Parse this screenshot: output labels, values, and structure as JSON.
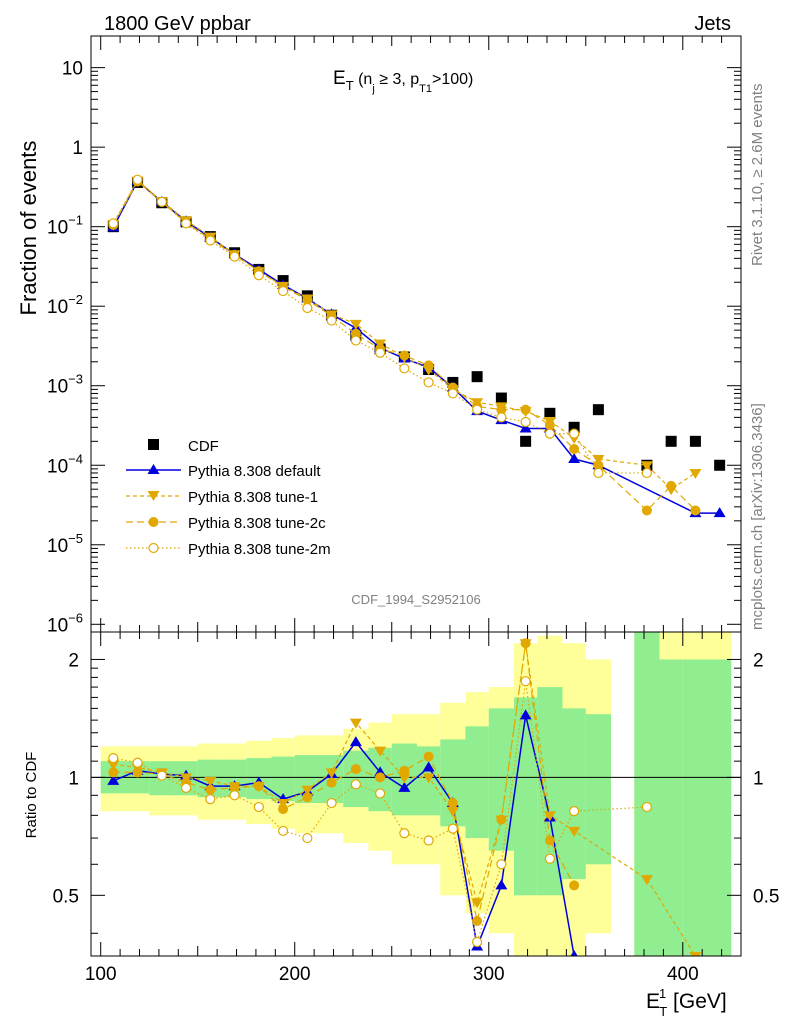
{
  "header": {
    "left": "1800 GeV ppbar",
    "right": "Jets",
    "side_top": "Rivet 3.1.10, ≥ 2.6M events",
    "side_bottom": "mcplots.cern.ch [arXiv:1306.3436]",
    "watermark": "CDF_1994_S2952106"
  },
  "colors": {
    "cdf": "#000000",
    "default": "#0000dd",
    "tunes": "#e0a800",
    "band_inner": "#90ee90",
    "band_outer": "#ffff99"
  },
  "chart_data": [
    {
      "type": "scatter",
      "title": "E_T (n_j ≥ 3, p_T1 >100)",
      "title_main": "E",
      "title_sub": "T",
      "title_rest_1": " (n",
      "title_sub2": "j",
      "title_rest_2": " ≥ 3, p",
      "title_sub3": "T1",
      "title_rest_3": ">100)",
      "ylabel": "Fraction of events",
      "yscale": "log",
      "ylim": [
        8e-07,
        25
      ],
      "xlim": [
        95,
        430
      ],
      "y_ticks": [
        {
          "v": 10,
          "m": "10",
          "e": ""
        },
        {
          "v": 1,
          "m": "1",
          "e": ""
        },
        {
          "v": 0.1,
          "m": "10",
          "e": "−1"
        },
        {
          "v": 0.01,
          "m": "10",
          "e": "−2"
        },
        {
          "v": 0.001,
          "m": "10",
          "e": "−3"
        },
        {
          "v": 0.0001,
          "m": "10",
          "e": "−4"
        },
        {
          "v": 1e-05,
          "m": "10",
          "e": "−5"
        },
        {
          "v": 1e-06,
          "m": "10",
          "e": "−6"
        }
      ],
      "legend": {
        "position": "bottom-left",
        "entries": [
          "CDF",
          "Pythia 8.308 default",
          "Pythia 8.308 tune-1",
          "Pythia 8.308 tune-2c",
          "Pythia 8.308 tune-2m"
        ]
      },
      "series": [
        {
          "name": "CDF",
          "style": "square",
          "x": [
            106.5,
            119,
            131.5,
            144,
            156.5,
            169,
            181.5,
            194,
            206.5,
            219,
            231.5,
            244,
            256.5,
            269,
            281.5,
            294,
            306.5,
            319,
            331.5,
            344,
            356.5,
            381.5,
            394,
            406.5,
            419
          ],
          "y": [
            0.1,
            0.36,
            0.2,
            0.115,
            0.075,
            0.047,
            0.029,
            0.021,
            0.0135,
            0.0077,
            0.0043,
            0.0029,
            0.0023,
            0.0016,
            0.0011,
            0.0013,
            0.0007,
            0.0002,
            0.00045,
            0.0003,
            0.0005,
            0.0001,
            0.0002,
            0.0002,
            0.0001
          ]
        },
        {
          "name": "Pythia 8.308 default",
          "style": "triangle-up",
          "x": [
            106.5,
            119,
            131.5,
            144,
            156.5,
            169,
            181.5,
            194,
            206.5,
            219,
            231.5,
            244,
            256.5,
            269,
            281.5,
            294,
            306.5,
            319,
            331.5,
            344,
            356.5,
            406.5,
            419
          ],
          "y": [
            0.098,
            0.375,
            0.205,
            0.117,
            0.073,
            0.045,
            0.029,
            0.0185,
            0.0125,
            0.0079,
            0.0053,
            0.003,
            0.0022,
            0.0017,
            0.00095,
            0.00048,
            0.00037,
            0.00029,
            0.00029,
            0.00012,
            0.0001,
            2.5e-05,
            2.5e-05
          ]
        },
        {
          "name": "Pythia 8.308 tune-1",
          "style": "triangle-down",
          "x": [
            106.5,
            119,
            131.5,
            144,
            156.5,
            169,
            181.5,
            194,
            206.5,
            219,
            231.5,
            244,
            256.5,
            269,
            281.5,
            294,
            306.5,
            319,
            331.5,
            344,
            356.5,
            381.5,
            394,
            406.5
          ],
          "y": [
            0.108,
            0.38,
            0.21,
            0.12,
            0.075,
            0.045,
            0.0275,
            0.018,
            0.0125,
            0.0079,
            0.006,
            0.0034,
            0.0023,
            0.0016,
            0.0009,
            0.00062,
            0.00055,
            0.00048,
            0.00036,
            0.00022,
            0.00012,
            0.0001,
            5e-05,
            8e-05
          ]
        },
        {
          "name": "Pythia 8.308 tune-2c",
          "style": "circle",
          "x": [
            106.5,
            119,
            131.5,
            144,
            156.5,
            169,
            181.5,
            194,
            206.5,
            219,
            231.5,
            244,
            256.5,
            269,
            281.5,
            294,
            306.5,
            319,
            331.5,
            344,
            356.5,
            381.5,
            394,
            406.5
          ],
          "y": [
            0.105,
            0.37,
            0.205,
            0.112,
            0.07,
            0.044,
            0.0275,
            0.0175,
            0.012,
            0.0075,
            0.0045,
            0.0029,
            0.0024,
            0.0018,
            0.00095,
            0.00055,
            0.0005,
            0.0005,
            0.00032,
            0.00016,
            0.0001,
            2.7e-05,
            5.5e-05,
            2.7e-05
          ]
        },
        {
          "name": "Pythia 8.308 tune-2m",
          "style": "circle-open",
          "x": [
            106.5,
            119,
            131.5,
            144,
            156.5,
            169,
            181.5,
            194,
            206.5,
            219,
            231.5,
            244,
            256.5,
            269,
            281.5,
            294,
            306.5,
            319,
            331.5,
            344,
            356.5,
            381.5
          ],
          "y": [
            0.11,
            0.39,
            0.205,
            0.11,
            0.067,
            0.042,
            0.0245,
            0.0155,
            0.0095,
            0.0066,
            0.0037,
            0.0026,
            0.00165,
            0.0011,
            0.0008,
            0.0005,
            0.0004,
            0.00035,
            0.00025,
            0.00025,
            8e-05,
            8e-05
          ]
        }
      ]
    },
    {
      "type": "scatter",
      "title": "",
      "xlabel": "E",
      "xlabel_sub": "T",
      "xlabel_sup": "1",
      "xlabel_unit": " [GeV]",
      "ylabel": "Ratio to CDF",
      "yscale": "log",
      "ylim": [
        0.35,
        2.35
      ],
      "xlim": [
        95,
        430
      ],
      "x_ticks": [
        100,
        200,
        300,
        400
      ],
      "y_ticks": [
        0.5,
        1,
        2
      ],
      "bands": {
        "x_edges": [
          100,
          113,
          125,
          138,
          150,
          163,
          175,
          188,
          200,
          213,
          225,
          238,
          250,
          263,
          275,
          288,
          300,
          313,
          325,
          338,
          350,
          363,
          375,
          388,
          400,
          413,
          425
        ],
        "inner": [
          [
            0.91,
            1.1
          ],
          [
            0.91,
            1.1
          ],
          [
            0.9,
            1.1
          ],
          [
            0.9,
            1.1
          ],
          [
            0.89,
            1.11
          ],
          [
            0.89,
            1.11
          ],
          [
            0.88,
            1.12
          ],
          [
            0.87,
            1.13
          ],
          [
            0.86,
            1.14
          ],
          [
            0.86,
            1.14
          ],
          [
            0.84,
            1.17
          ],
          [
            0.82,
            1.19
          ],
          [
            0.8,
            1.22
          ],
          [
            0.8,
            1.2
          ],
          [
            0.75,
            1.25
          ],
          [
            0.7,
            1.35
          ],
          [
            0.65,
            1.5
          ],
          [
            0.5,
            1.6
          ],
          [
            0.5,
            1.7
          ],
          [
            0.55,
            1.5
          ],
          [
            0.6,
            1.45
          ],
          [
            null,
            null
          ],
          [
            0.0,
            2.5
          ],
          [
            0.0,
            2.0
          ],
          [
            0.0,
            2.0
          ],
          [
            0.0,
            2.0
          ]
        ],
        "outer": [
          [
            0.82,
            1.2
          ],
          [
            0.82,
            1.2
          ],
          [
            0.8,
            1.2
          ],
          [
            0.8,
            1.2
          ],
          [
            0.78,
            1.22
          ],
          [
            0.78,
            1.22
          ],
          [
            0.76,
            1.24
          ],
          [
            0.74,
            1.26
          ],
          [
            0.72,
            1.28
          ],
          [
            0.72,
            1.28
          ],
          [
            0.68,
            1.33
          ],
          [
            0.65,
            1.38
          ],
          [
            0.6,
            1.45
          ],
          [
            0.6,
            1.45
          ],
          [
            0.5,
            1.55
          ],
          [
            0.45,
            1.65
          ],
          [
            0.4,
            1.7
          ],
          [
            0.3,
            2.2
          ],
          [
            0.3,
            2.3
          ],
          [
            0.35,
            2.2
          ],
          [
            0.4,
            2.0
          ],
          [
            null,
            null
          ],
          [
            0.0,
            2.5
          ],
          [
            0.0,
            2.5
          ],
          [
            0.0,
            2.5
          ],
          [
            0.0,
            2.5
          ]
        ]
      },
      "series": [
        {
          "name": "Pythia 8.308 default",
          "style": "triangle-up",
          "x": [
            106.5,
            119,
            131.5,
            144,
            156.5,
            169,
            181.5,
            194,
            206.5,
            219,
            231.5,
            244,
            256.5,
            269,
            281.5,
            294,
            306.5,
            319,
            331.5,
            344
          ],
          "y": [
            0.98,
            1.04,
            1.02,
            1.01,
            0.95,
            0.95,
            0.97,
            0.88,
            0.92,
            1.02,
            1.23,
            1.03,
            0.94,
            1.06,
            0.86,
            0.37,
            0.53,
            1.44,
            0.79,
            0.35
          ]
        },
        {
          "name": "Pythia 8.308 tune-1",
          "style": "triangle-down",
          "x": [
            106.5,
            119,
            131.5,
            144,
            156.5,
            169,
            181.5,
            194,
            206.5,
            219,
            231.5,
            244,
            256.5,
            269,
            281.5,
            294,
            306.5,
            319,
            331.5,
            344,
            381.5,
            406.5
          ],
          "y": [
            1.08,
            1.06,
            1.03,
            1.0,
            0.98,
            0.95,
            0.95,
            0.86,
            0.93,
            1.03,
            1.38,
            1.17,
            1.0,
            1.0,
            0.82,
            0.48,
            0.78,
            2.2,
            0.8,
            0.73,
            0.55,
            0.35
          ]
        },
        {
          "name": "Pythia 8.308 tune-2c",
          "style": "circle",
          "x": [
            106.5,
            119,
            131.5,
            144,
            156.5,
            169,
            181.5,
            194,
            206.5,
            219,
            231.5,
            244,
            256.5,
            269,
            281.5,
            294,
            306.5,
            319,
            331.5,
            344
          ],
          "y": [
            1.03,
            1.03,
            1.02,
            0.97,
            0.93,
            0.94,
            0.95,
            0.83,
            0.89,
            0.97,
            1.05,
            1.0,
            1.04,
            1.13,
            0.86,
            0.43,
            0.78,
            2.2,
            0.69,
            0.53
          ]
        },
        {
          "name": "Pythia 8.308 tune-2m",
          "style": "circle-open",
          "x": [
            106.5,
            119,
            131.5,
            144,
            156.5,
            169,
            181.5,
            194,
            206.5,
            219,
            231.5,
            244,
            256.5,
            269,
            281.5,
            294,
            306.5,
            319,
            331.5,
            344,
            381.5
          ],
          "y": [
            1.12,
            1.09,
            1.01,
            0.94,
            0.88,
            0.9,
            0.84,
            0.73,
            0.7,
            0.86,
            0.96,
            0.91,
            0.72,
            0.69,
            0.74,
            0.38,
            0.6,
            1.76,
            0.62,
            0.82,
            0.84
          ]
        }
      ]
    }
  ]
}
